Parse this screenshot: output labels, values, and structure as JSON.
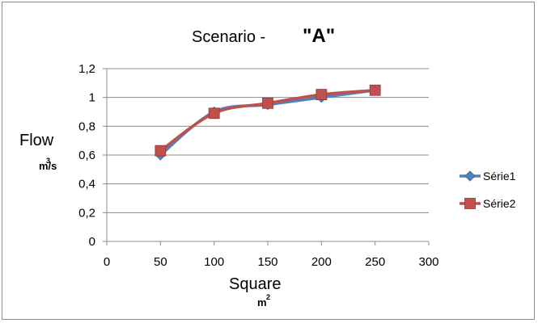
{
  "chart_data": {
    "type": "line",
    "title": "Scenario  -",
    "title_accent": "\"A\"",
    "xlabel": "Square",
    "xunit": "m",
    "xunit_sup": "2",
    "ylabel": "Flow",
    "yunit": "m/s",
    "yunit_sup": "3",
    "xlim": [
      0,
      300
    ],
    "ylim": [
      0,
      1.2
    ],
    "x_ticks": [
      "0",
      "50",
      "100",
      "150",
      "200",
      "250",
      "300"
    ],
    "y_ticks": [
      "0",
      "0,2",
      "0,4",
      "0,6",
      "0,8",
      "1",
      "1,2"
    ],
    "grid": "horizontal",
    "legend_position": "right",
    "x": [
      50,
      100,
      150,
      200,
      250
    ],
    "series": [
      {
        "name": "Série1",
        "values": [
          0.6,
          0.9,
          0.95,
          1.0,
          1.05
        ],
        "color": "#4f81bd",
        "marker": "diamond"
      },
      {
        "name": "Série2",
        "values": [
          0.63,
          0.89,
          0.96,
          1.02,
          1.05
        ],
        "color": "#c0504d",
        "marker": "square"
      }
    ]
  }
}
